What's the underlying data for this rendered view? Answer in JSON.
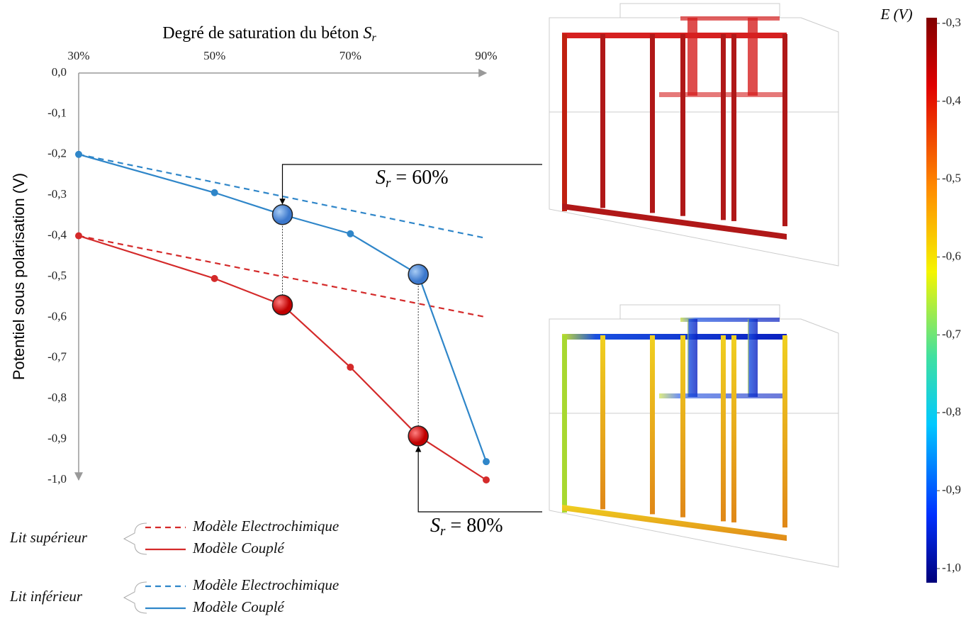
{
  "chart_data": {
    "type": "line",
    "x_label": {
      "text": "Degré de saturation du béton ",
      "symbol": "S",
      "sub": "r"
    },
    "y_label": "Potentiel sous polarisation  (V)",
    "xlim": [
      30,
      90
    ],
    "xticks": [
      {
        "value": 30,
        "label": "30%"
      },
      {
        "value": 50,
        "label": "50%"
      },
      {
        "value": 70,
        "label": "70%"
      },
      {
        "value": 90,
        "label": "90%"
      }
    ],
    "ylim": [
      -1.0,
      0
    ],
    "yticks": [
      {
        "value": 0,
        "label": "0,0"
      },
      {
        "value": -0.1,
        "label": "-0,1"
      },
      {
        "value": -0.2,
        "label": "-0,2"
      },
      {
        "value": -0.3,
        "label": "-0,3"
      },
      {
        "value": -0.4,
        "label": "-0,4"
      },
      {
        "value": -0.5,
        "label": "-0,5"
      },
      {
        "value": -0.6,
        "label": "-0,6"
      },
      {
        "value": -0.7,
        "label": "-0,7"
      },
      {
        "value": -0.8,
        "label": "-0,8"
      },
      {
        "value": -0.9,
        "label": "-0,9"
      },
      {
        "value": -1.0,
        "label": "-1,0"
      }
    ],
    "groups": [
      {
        "name": "Lit supérieur",
        "series": [
          {
            "name": "Modèle Electrochimique",
            "color": "#d42a2a",
            "dash": true,
            "x": [
              30,
              90
            ],
            "values": [
              -0.4,
              -0.6
            ]
          },
          {
            "name": "Modèle Couplé",
            "color": "#d42a2a",
            "dash": false,
            "x": [
              30,
              50,
              60,
              70,
              80,
              90
            ],
            "values": [
              -0.4,
              -0.505,
              -0.57,
              -0.723,
              -0.892,
              -1.0
            ]
          }
        ]
      },
      {
        "name": "Lit inférieur",
        "series": [
          {
            "name": "Modèle Electrochimique",
            "color": "#2f86c9",
            "dash": true,
            "x": [
              30,
              90
            ],
            "values": [
              -0.2,
              -0.406
            ]
          },
          {
            "name": "Modèle Couplé",
            "color": "#2f86c9",
            "dash": false,
            "x": [
              30,
              50,
              60,
              70,
              80,
              90
            ],
            "values": [
              -0.2,
              -0.294,
              -0.348,
              -0.395,
              -0.495,
              -0.955
            ]
          }
        ]
      }
    ],
    "annotations": [
      {
        "x": 60,
        "label": {
          "symbol": "S",
          "sub": "r",
          "text": " = 60%"
        }
      },
      {
        "x": 80,
        "label": {
          "symbol": "S",
          "sub": "r",
          "text": " = 80%"
        }
      }
    ]
  },
  "colorbar": {
    "label": "E (V)",
    "lim": [
      -1.0,
      -0.3
    ],
    "ticks": [
      {
        "value": -0.3,
        "label": "-0,3"
      },
      {
        "value": -0.4,
        "label": "-0,4"
      },
      {
        "value": -0.5,
        "label": "-0,5"
      },
      {
        "value": -0.6,
        "label": "-0,6"
      },
      {
        "value": -0.7,
        "label": "-0,7"
      },
      {
        "value": -0.8,
        "label": "-0,8"
      },
      {
        "value": -0.9,
        "label": "-0,9"
      },
      {
        "value": -1.0,
        "label": "-1,0"
      }
    ]
  }
}
